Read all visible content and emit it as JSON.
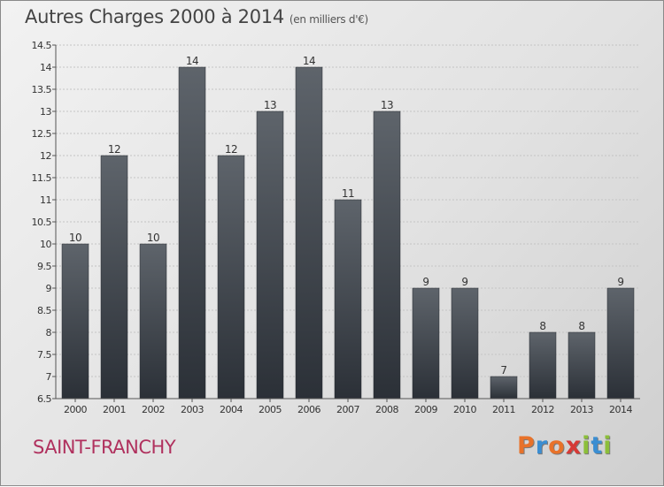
{
  "header": {
    "title": "Autres Charges 2000 à 2014",
    "subtitle": "(en milliers d'€)"
  },
  "footer": {
    "location": "SAINT-FRANCHY",
    "logo": "Proxiti"
  },
  "colors": {
    "title": "#444444",
    "location": "#b0315e",
    "bar_top": "#5e646b",
    "bar_bottom": "#2b3037",
    "logo": [
      "#e8722a",
      "#3b8ed2",
      "#e8722a",
      "#d63a36",
      "#8cbf3a",
      "#3b8ed2",
      "#8cbf3a"
    ]
  },
  "chart_data": {
    "type": "bar",
    "title": "Autres Charges 2000 à 2014",
    "categories": [
      "2000",
      "2001",
      "2002",
      "2003",
      "2004",
      "2005",
      "2006",
      "2007",
      "2008",
      "2009",
      "2010",
      "2011",
      "2012",
      "2013",
      "2014"
    ],
    "values": [
      10,
      12,
      10,
      14,
      12,
      13,
      14,
      11,
      13,
      9,
      9,
      7,
      8,
      8,
      9
    ],
    "data_labels": [
      "10",
      "12",
      "10",
      "14",
      "12",
      "13",
      "14",
      "11",
      "13",
      "9",
      "9",
      "7",
      "8",
      "8",
      "9"
    ],
    "ylim": [
      6.5,
      14.5
    ],
    "yticks": [
      6.5,
      7,
      7.5,
      8,
      8.5,
      9,
      9.5,
      10,
      10.5,
      11,
      11.5,
      12,
      12.5,
      13,
      13.5,
      14,
      14.5
    ],
    "ytick_labels": [
      "6.5",
      "7",
      "7.5",
      "8",
      "8.5",
      "9",
      "9.5",
      "10",
      "10.5",
      "11",
      "11.5",
      "12",
      "12.5",
      "13",
      "13.5",
      "14",
      "14.5"
    ],
    "grid": true
  }
}
